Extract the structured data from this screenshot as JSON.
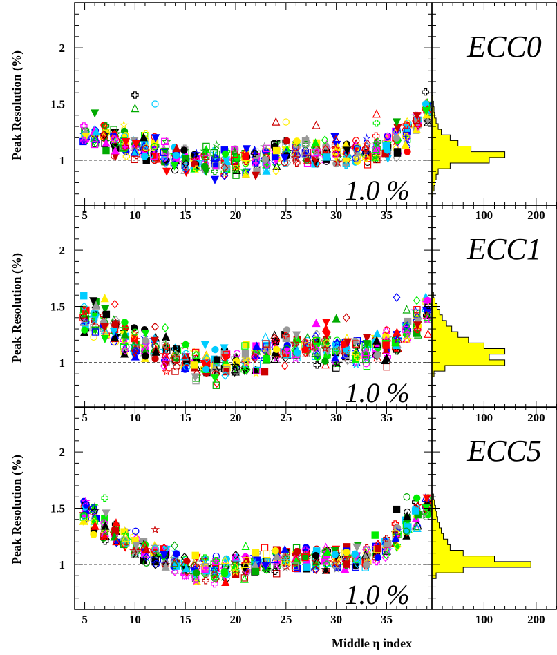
{
  "chart_data": {
    "type": "scatter",
    "xlabel": "Middle η index",
    "ylabel": "Peak Resolution (%)",
    "xlim": [
      4,
      39.5
    ],
    "ylim": [
      0.6,
      2.4
    ],
    "x_ticks": [
      5,
      10,
      15,
      20,
      25,
      30,
      35
    ],
    "y_ticks": [
      1,
      1.5,
      2
    ],
    "reference_line": {
      "y": 1.0,
      "label": "1.0 %"
    },
    "histogram_x_ticks": [
      100,
      200
    ],
    "histogram_xlim": [
      0,
      240
    ],
    "colors": [
      "#000000",
      "#ff0000",
      "#0000ff",
      "#00ee00",
      "#ff00ff",
      "#ffee00",
      "#00ccff",
      "#00aa00",
      "#cc0000",
      "#999999"
    ],
    "panels": [
      {
        "label": "ECC0",
        "trend": [
          [
            5,
            1.22
          ],
          [
            7,
            1.2
          ],
          [
            9,
            1.15
          ],
          [
            11,
            1.1
          ],
          [
            13,
            1.04
          ],
          [
            15,
            1.0
          ],
          [
            17,
            0.98
          ],
          [
            19,
            0.99
          ],
          [
            21,
            0.99
          ],
          [
            23,
            1.03
          ],
          [
            25,
            1.07
          ],
          [
            27,
            1.06
          ],
          [
            29,
            1.05
          ],
          [
            31,
            1.06
          ],
          [
            33,
            1.08
          ],
          [
            35,
            1.13
          ],
          [
            37,
            1.22
          ],
          [
            39,
            1.46
          ]
        ],
        "spread": 0.11,
        "outliers": [
          [
            10,
            1.58
          ],
          [
            10,
            1.46
          ],
          [
            12,
            1.5
          ],
          [
            6,
            1.42
          ],
          [
            24,
            1.34
          ],
          [
            25,
            1.34
          ],
          [
            28,
            1.31
          ],
          [
            34,
            1.41
          ],
          [
            34,
            1.33
          ],
          [
            36,
            1.34
          ]
        ],
        "histogram": [
          [
            0.7,
            2
          ],
          [
            0.75,
            4
          ],
          [
            0.8,
            6
          ],
          [
            0.85,
            8
          ],
          [
            0.9,
            12
          ],
          [
            0.95,
            35
          ],
          [
            1.0,
            110
          ],
          [
            1.05,
            140
          ],
          [
            1.1,
            75
          ],
          [
            1.15,
            50
          ],
          [
            1.2,
            35
          ],
          [
            1.25,
            18
          ],
          [
            1.3,
            12
          ],
          [
            1.35,
            8
          ],
          [
            1.4,
            5
          ],
          [
            1.45,
            4
          ],
          [
            1.5,
            3
          ],
          [
            1.55,
            2
          ]
        ]
      },
      {
        "label": "ECC1",
        "trend": [
          [
            5,
            1.42
          ],
          [
            7,
            1.35
          ],
          [
            9,
            1.22
          ],
          [
            11,
            1.14
          ],
          [
            13,
            1.08
          ],
          [
            15,
            1.02
          ],
          [
            17,
            0.99
          ],
          [
            19,
            0.99
          ],
          [
            21,
            1.03
          ],
          [
            23,
            1.08
          ],
          [
            25,
            1.13
          ],
          [
            27,
            1.15
          ],
          [
            29,
            1.14
          ],
          [
            31,
            1.13
          ],
          [
            33,
            1.12
          ],
          [
            35,
            1.13
          ],
          [
            37,
            1.25
          ],
          [
            39,
            1.45
          ]
        ],
        "spread": 0.13,
        "outliers": [
          [
            7,
            1.57
          ],
          [
            8,
            1.52
          ],
          [
            12,
            1.32
          ],
          [
            13,
            1.31
          ],
          [
            28,
            1.35
          ],
          [
            29,
            1.36
          ],
          [
            30,
            1.39
          ],
          [
            31,
            1.4
          ],
          [
            36,
            1.58
          ],
          [
            37,
            1.47
          ],
          [
            38,
            1.44
          ]
        ],
        "histogram": [
          [
            0.9,
            4
          ],
          [
            0.95,
            25
          ],
          [
            1.0,
            140
          ],
          [
            1.05,
            110
          ],
          [
            1.1,
            140
          ],
          [
            1.15,
            100
          ],
          [
            1.2,
            70
          ],
          [
            1.25,
            50
          ],
          [
            1.3,
            38
          ],
          [
            1.35,
            28
          ],
          [
            1.4,
            20
          ],
          [
            1.45,
            15
          ],
          [
            1.5,
            10
          ],
          [
            1.55,
            6
          ],
          [
            1.6,
            3
          ]
        ]
      },
      {
        "label": "ECC5",
        "trend": [
          [
            5,
            1.45
          ],
          [
            7,
            1.32
          ],
          [
            9,
            1.22
          ],
          [
            11,
            1.14
          ],
          [
            13,
            1.07
          ],
          [
            15,
            0.99
          ],
          [
            17,
            0.96
          ],
          [
            19,
            0.96
          ],
          [
            21,
            0.98
          ],
          [
            23,
            1.02
          ],
          [
            25,
            1.06
          ],
          [
            27,
            1.06
          ],
          [
            29,
            1.05
          ],
          [
            31,
            1.05
          ],
          [
            33,
            1.08
          ],
          [
            35,
            1.15
          ],
          [
            37,
            1.35
          ],
          [
            39,
            1.52
          ]
        ],
        "spread": 0.1,
        "outliers": [
          [
            7,
            1.59
          ],
          [
            12,
            1.31
          ],
          [
            16,
            1.08
          ],
          [
            21,
            1.16
          ],
          [
            35,
            1.23
          ],
          [
            36,
            1.49
          ],
          [
            37,
            1.6
          ],
          [
            38,
            1.59
          ],
          [
            39,
            1.59
          ]
        ],
        "histogram": [
          [
            0.9,
            8
          ],
          [
            0.95,
            60
          ],
          [
            1.0,
            190
          ],
          [
            1.05,
            120
          ],
          [
            1.1,
            60
          ],
          [
            1.15,
            35
          ],
          [
            1.2,
            30
          ],
          [
            1.25,
            22
          ],
          [
            1.3,
            18
          ],
          [
            1.35,
            14
          ],
          [
            1.4,
            11
          ],
          [
            1.45,
            9
          ],
          [
            1.5,
            7
          ],
          [
            1.55,
            5
          ],
          [
            1.6,
            3
          ]
        ]
      }
    ]
  }
}
